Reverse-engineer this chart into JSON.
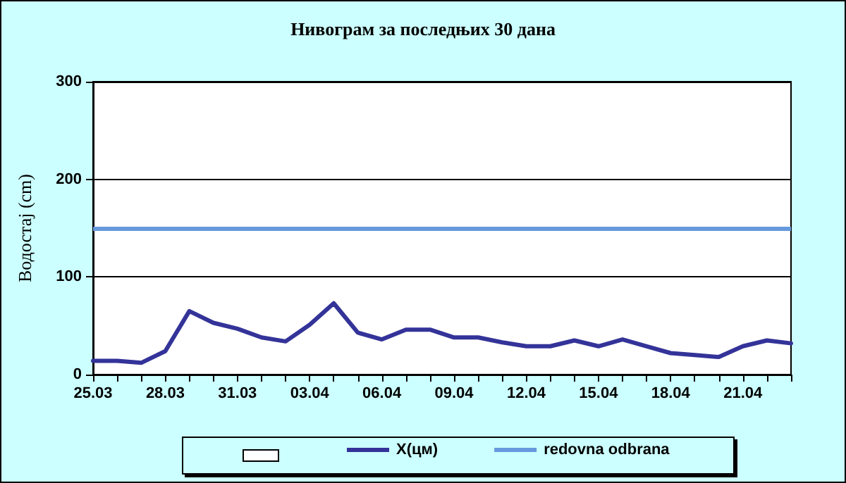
{
  "chart_data": {
    "type": "line",
    "title": "Нивограм за последњих 30 дана",
    "ylabel": "Водостај (cm)",
    "categories": [
      "25.03",
      null,
      null,
      "28.03",
      null,
      null,
      "31.03",
      null,
      null,
      "03.04",
      null,
      null,
      "06.04",
      null,
      null,
      "09.04",
      null,
      null,
      "12.04",
      null,
      null,
      "15.04",
      null,
      null,
      "18.04",
      null,
      null,
      "21.04",
      null,
      null
    ],
    "series": [
      {
        "name": "X(цм)",
        "color": "#333399",
        "values": [
          14,
          14,
          12,
          24,
          65,
          53,
          47,
          38,
          34,
          51,
          73,
          43,
          36,
          46,
          46,
          38,
          38,
          33,
          29,
          29,
          35,
          29,
          36,
          29,
          22,
          20,
          18,
          29,
          35,
          32
        ]
      }
    ],
    "ylim": [
      0,
      300
    ],
    "yticks": [
      0,
      100,
      200,
      300
    ],
    "grid": "y",
    "legend": "bottom",
    "marker": "none",
    "line_style": "solid",
    "ref_lines": [
      {
        "axis": "y",
        "value": 150,
        "label": "redovna odbrana",
        "color": "#6699dd"
      }
    ]
  }
}
